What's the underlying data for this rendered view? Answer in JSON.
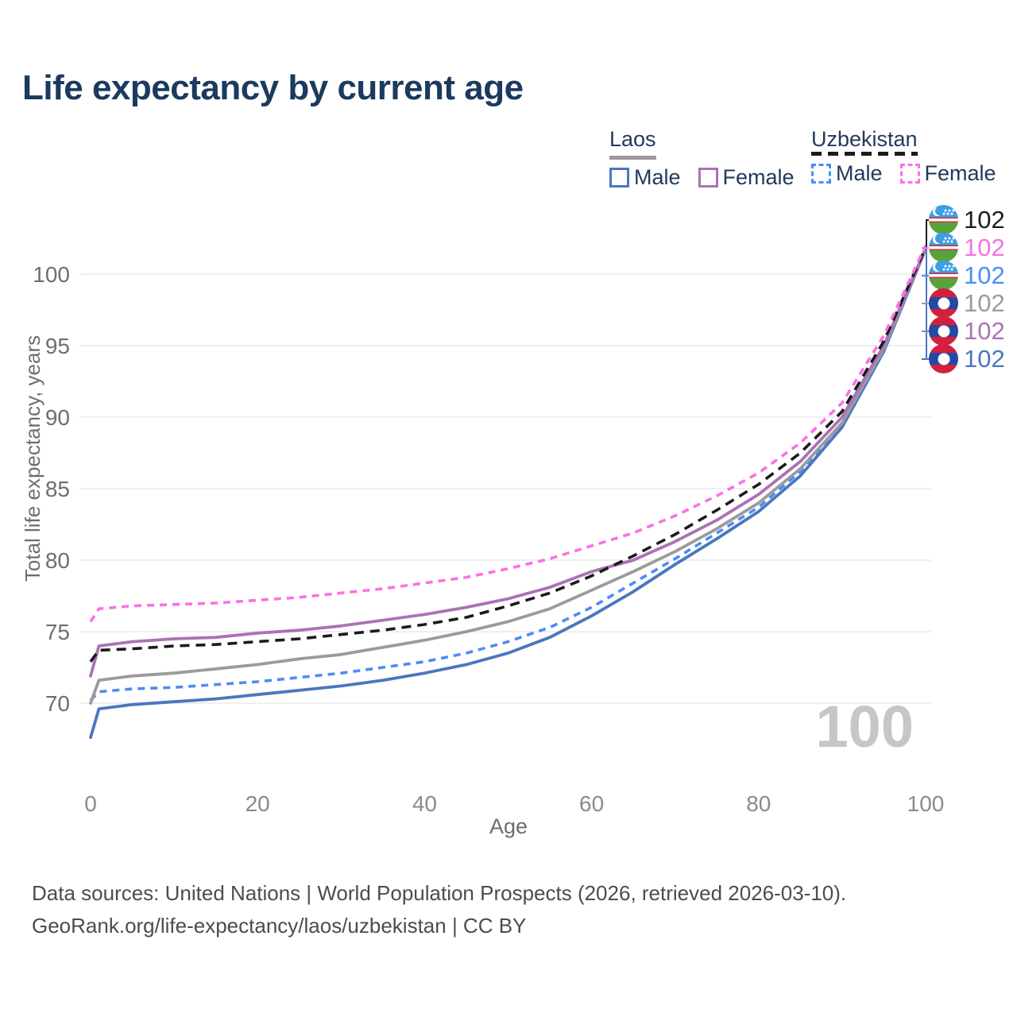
{
  "page": {
    "title": "Life expectancy by current age",
    "watermark": "100"
  },
  "legend": {
    "groups": [
      {
        "name": "Laos",
        "underline_style": "solid",
        "underline_color": "#9b9b9b",
        "items": [
          {
            "label": "Male",
            "color": "#4a77bd",
            "dash": false
          },
          {
            "label": "Female",
            "color": "#aa73b4",
            "dash": false
          }
        ]
      },
      {
        "name": "Uzbekistan",
        "underline_style": "dashed",
        "underline_color": "#1b1b1b",
        "items": [
          {
            "label": "Male",
            "color": "#4d8cf5",
            "dash": true
          },
          {
            "label": "Female",
            "color": "#fb70e6",
            "dash": true
          }
        ]
      }
    ]
  },
  "end_labels": [
    {
      "flag": "uzbekistan",
      "value": "102",
      "color": "#1b1b1b"
    },
    {
      "flag": "uzbekistan",
      "value": "102",
      "color": "#fb70e6"
    },
    {
      "flag": "uzbekistan",
      "value": "102",
      "color": "#4d8cf5"
    },
    {
      "flag": "laos",
      "value": "102",
      "color": "#9b9b9b"
    },
    {
      "flag": "laos",
      "value": "102",
      "color": "#aa73b4"
    },
    {
      "flag": "laos",
      "value": "102",
      "color": "#4a77bd"
    }
  ],
  "chart_data": {
    "type": "line",
    "title": "Life expectancy by current age",
    "xlabel": "Age",
    "ylabel": "Total life expectancy, years",
    "x_ticks": [
      0,
      20,
      40,
      60,
      80,
      100
    ],
    "y_ticks": [
      70,
      75,
      80,
      85,
      90,
      95,
      100
    ],
    "xlim": [
      0,
      100
    ],
    "ylim": [
      66.5,
      103
    ],
    "grid": "horizontal",
    "legend_position": "top-right",
    "ages": [
      0,
      1,
      5,
      10,
      15,
      20,
      25,
      30,
      35,
      40,
      45,
      50,
      55,
      60,
      65,
      70,
      75,
      80,
      85,
      90,
      95,
      100
    ],
    "series": [
      {
        "id": "laos-male",
        "country": "Laos",
        "sex": "Male",
        "style": "solid",
        "color": "#4a77bd",
        "end_value": 102,
        "values": [
          67.6,
          69.6,
          69.9,
          70.1,
          70.3,
          70.6,
          70.9,
          71.2,
          71.6,
          72.1,
          72.7,
          73.5,
          74.6,
          76.1,
          77.8,
          79.7,
          81.5,
          83.4,
          85.9,
          89.3,
          94.6,
          101.75
        ]
      },
      {
        "id": "uzbekistan-male",
        "country": "Uzbekistan",
        "sex": "Male",
        "style": "dashed",
        "color": "#4d8cf5",
        "end_value": 102,
        "values": [
          70.2,
          70.8,
          71.0,
          71.1,
          71.3,
          71.5,
          71.8,
          72.1,
          72.5,
          72.9,
          73.5,
          74.3,
          75.3,
          76.7,
          78.4,
          80.1,
          81.9,
          83.7,
          86.2,
          89.5,
          94.7,
          101.75
        ]
      },
      {
        "id": "laos-total",
        "country": "Laos",
        "sex": "Total",
        "style": "solid",
        "color": "#9b9b9b",
        "end_value": 102,
        "values": [
          70.0,
          71.6,
          71.9,
          72.1,
          72.4,
          72.7,
          73.1,
          73.4,
          73.9,
          74.4,
          75.0,
          75.7,
          76.6,
          77.9,
          79.2,
          80.6,
          82.2,
          84.0,
          86.4,
          89.6,
          94.8,
          101.8
        ]
      },
      {
        "id": "laos-female",
        "country": "Laos",
        "sex": "Female",
        "style": "solid",
        "color": "#aa73b4",
        "end_value": 102,
        "values": [
          71.9,
          74.0,
          74.3,
          74.5,
          74.6,
          74.9,
          75.1,
          75.4,
          75.8,
          76.2,
          76.7,
          77.3,
          78.1,
          79.2,
          80.0,
          81.3,
          82.8,
          84.6,
          86.9,
          90.0,
          95.0,
          101.8
        ]
      },
      {
        "id": "uzbekistan-total",
        "country": "Uzbekistan",
        "sex": "Total",
        "style": "dashed",
        "color": "#1b1b1b",
        "end_value": 102,
        "values": [
          72.9,
          73.7,
          73.8,
          74.0,
          74.1,
          74.3,
          74.5,
          74.8,
          75.1,
          75.5,
          76.0,
          76.8,
          77.7,
          78.9,
          80.3,
          81.8,
          83.5,
          85.3,
          87.5,
          90.4,
          95.3,
          101.85
        ]
      },
      {
        "id": "uzbekistan-female",
        "country": "Uzbekistan",
        "sex": "Female",
        "style": "dashed",
        "color": "#fb70e6",
        "end_value": 102,
        "values": [
          75.7,
          76.6,
          76.8,
          76.9,
          77.0,
          77.2,
          77.4,
          77.7,
          78.0,
          78.4,
          78.8,
          79.4,
          80.1,
          81.0,
          81.9,
          83.1,
          84.5,
          86.1,
          88.2,
          91.0,
          95.7,
          102.0
        ]
      }
    ]
  },
  "footer": {
    "line1": "Data sources: United Nations | World Population Prospects (2026, retrieved 2026-03-10).",
    "line2": "GeoRank.org/life-expectancy/laos/uzbekistan | CC BY"
  }
}
